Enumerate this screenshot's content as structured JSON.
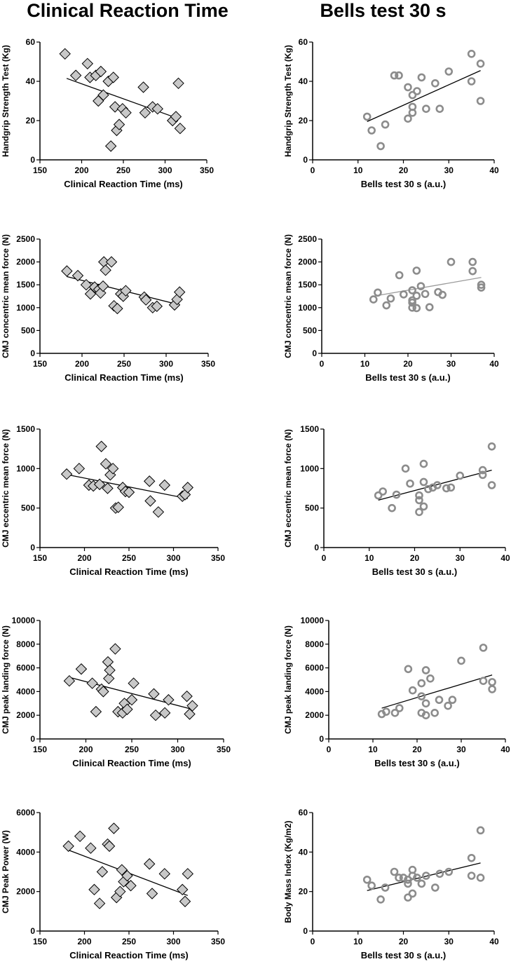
{
  "titles": {
    "left": "Clinical Reaction Time",
    "right": "Bells test 30 s"
  },
  "colors": {
    "diamond_fill": "#c8c8c8",
    "diamond_stroke": "#000000",
    "circle_stroke": "#8c8c8c",
    "line_dark": "#000000",
    "line_light": "#9a9a9a"
  },
  "chart_data": [
    {
      "type": "scatter",
      "marker": "diamond",
      "xlabel": "Clinical Reaction Time (ms)",
      "ylabel": "Handgrip Strength Test (Kg)",
      "xlim": [
        150,
        350
      ],
      "ylim": [
        0,
        60
      ],
      "xticks": [
        150,
        200,
        250,
        300,
        350
      ],
      "yticks": [
        0,
        20,
        40,
        60
      ],
      "x": [
        180,
        193,
        207,
        210,
        217,
        220,
        223,
        226,
        232,
        235,
        238,
        240,
        242,
        245,
        249,
        253,
        274,
        276,
        285,
        291,
        309,
        313,
        316,
        318
      ],
      "y": [
        54,
        43,
        49,
        42,
        43,
        30,
        45,
        33,
        40,
        7,
        42,
        27,
        15,
        18,
        26,
        24,
        37,
        24,
        27,
        26,
        20,
        22,
        39,
        16
      ],
      "fit": {
        "x": [
          182,
          316
        ],
        "y": [
          41.5,
          21
        ]
      }
    },
    {
      "type": "scatter",
      "marker": "circle",
      "xlabel": "Bells test 30 s (a.u.)",
      "ylabel": "Handgrip Strength Test (Kg)",
      "xlim": [
        0,
        40
      ],
      "ylim": [
        0,
        60
      ],
      "xticks": [
        0,
        10,
        20,
        30,
        40
      ],
      "yticks": [
        0,
        20,
        40,
        60
      ],
      "x": [
        12,
        13,
        15,
        16,
        18,
        19,
        21,
        21,
        22,
        22,
        22,
        23,
        24,
        25,
        27,
        28,
        30,
        35,
        35,
        37,
        37
      ],
      "y": [
        22,
        15,
        7,
        18,
        43,
        43,
        37,
        21,
        33,
        24,
        27,
        35,
        42,
        26,
        39,
        26,
        45,
        54,
        40,
        49,
        30
      ],
      "fit": {
        "x": [
          12,
          37
        ],
        "y": [
          19.5,
          45.5
        ]
      }
    },
    {
      "type": "scatter",
      "marker": "diamond",
      "xlabel": "Clinical Reaction Time (ms)",
      "ylabel": "CMJ concentric mean force (N)",
      "xlim": [
        150,
        350
      ],
      "ylim": [
        0,
        2500
      ],
      "xticks": [
        150,
        200,
        250,
        300,
        350
      ],
      "yticks": [
        0,
        500,
        1000,
        1500,
        2000,
        2500
      ],
      "x": [
        182,
        195,
        205,
        210,
        215,
        220,
        222,
        225,
        226,
        228,
        235,
        238,
        242,
        246,
        249,
        252,
        274,
        276,
        284,
        289,
        310,
        313,
        316
      ],
      "y": [
        1800,
        1700,
        1500,
        1300,
        1450,
        1400,
        1320,
        1470,
        2000,
        1820,
        2000,
        1040,
        980,
        1300,
        1250,
        1370,
        1230,
        1170,
        1000,
        1030,
        1060,
        1180,
        1340
      ],
      "fit": {
        "x": [
          182,
          316
        ],
        "y": [
          1680,
          1060
        ]
      }
    },
    {
      "type": "scatter",
      "marker": "circle",
      "xlabel": "Bells test 30 s (a.u.)",
      "ylabel": "CMJ concentric mean force (N)",
      "xlim": [
        0,
        40
      ],
      "ylim": [
        0,
        2500
      ],
      "xticks": [
        0,
        10,
        20,
        30,
        40
      ],
      "yticks": [
        0,
        500,
        1000,
        1500,
        2000,
        2500
      ],
      "x": [
        12,
        13,
        15,
        16,
        18,
        19,
        21,
        21,
        21,
        21,
        22,
        22,
        22,
        23,
        24,
        25,
        27,
        28,
        30,
        35,
        35,
        37,
        37
      ],
      "y": [
        1180,
        1330,
        1050,
        1200,
        1710,
        1290,
        1380,
        1160,
        1000,
        1110,
        1810,
        1260,
        990,
        1470,
        1300,
        1010,
        1340,
        1280,
        2000,
        2000,
        1800,
        1500,
        1440
      ],
      "fit": {
        "x": [
          12,
          37
        ],
        "y": [
          1250,
          1660
        ]
      }
    },
    {
      "type": "scatter",
      "marker": "diamond",
      "xlabel": "Clinical Reaction Time (ms)",
      "ylabel": "CMJ eccentric mean force (N)",
      "xlim": [
        150,
        350
      ],
      "ylim": [
        0,
        1500
      ],
      "xticks": [
        150,
        200,
        250,
        300,
        350
      ],
      "yticks": [
        0,
        500,
        1000,
        1500
      ],
      "x": [
        180,
        194,
        205,
        210,
        217,
        219,
        224,
        226,
        229,
        232,
        235,
        238,
        243,
        246,
        250,
        273,
        274,
        283,
        290,
        310,
        313,
        316
      ],
      "y": [
        930,
        1000,
        790,
        780,
        800,
        1280,
        1060,
        750,
        920,
        1000,
        500,
        510,
        760,
        710,
        700,
        840,
        590,
        450,
        790,
        650,
        670,
        760
      ],
      "fit": {
        "x": [
          182,
          316
        ],
        "y": [
          920,
          620
        ]
      }
    },
    {
      "type": "scatter",
      "marker": "circle",
      "xlabel": "Bells test 30 s (a.u.)",
      "ylabel": "CMJ eccentric mean force (N)",
      "xlim": [
        0,
        40
      ],
      "ylim": [
        0,
        1500
      ],
      "xticks": [
        0,
        10,
        20,
        30,
        40
      ],
      "yticks": [
        0,
        500,
        1000,
        1500
      ],
      "x": [
        12,
        13,
        15,
        16,
        18,
        19,
        21,
        21,
        21,
        22,
        22,
        22,
        23,
        24,
        25,
        27,
        28,
        30,
        35,
        35,
        37,
        37
      ],
      "y": [
        660,
        710,
        500,
        670,
        1000,
        810,
        660,
        600,
        450,
        1060,
        830,
        520,
        740,
        760,
        790,
        750,
        760,
        910,
        980,
        920,
        1280,
        790
      ],
      "fit": {
        "x": [
          12,
          37
        ],
        "y": [
          600,
          980
        ]
      }
    },
    {
      "type": "scatter",
      "marker": "diamond",
      "xlabel": "Clinical Reaction Time (ms)",
      "ylabel": "CMJ peak landing force (N)",
      "xlim": [
        150,
        350
      ],
      "ylim": [
        0,
        10000
      ],
      "xticks": [
        150,
        200,
        250,
        300,
        350
      ],
      "yticks": [
        0,
        2000,
        4000,
        6000,
        8000,
        10000
      ],
      "x": [
        182,
        195,
        207,
        211,
        217,
        219,
        224,
        225,
        226,
        232,
        235,
        240,
        242,
        245,
        250,
        252,
        274,
        276,
        286,
        290,
        310,
        313,
        316
      ],
      "y": [
        4900,
        5900,
        4700,
        2300,
        4200,
        4000,
        6500,
        5100,
        5800,
        7600,
        2300,
        2200,
        3000,
        2500,
        3300,
        4700,
        3800,
        2000,
        2200,
        3300,
        3600,
        2100,
        2800
      ],
      "fit": {
        "x": [
          182,
          316
        ],
        "y": [
          5200,
          2500
        ]
      }
    },
    {
      "type": "scatter",
      "marker": "circle",
      "xlabel": "Bells test 30 s (a.u.)",
      "ylabel": "CMJ peak landing force (N)",
      "xlim": [
        0,
        40
      ],
      "ylim": [
        0,
        10000
      ],
      "xticks": [
        0,
        10,
        20,
        30,
        40
      ],
      "yticks": [
        0,
        2000,
        4000,
        6000,
        8000,
        10000
      ],
      "x": [
        12,
        13,
        15,
        16,
        18,
        19,
        21,
        21,
        21,
        22,
        22,
        22,
        23,
        24,
        25,
        27,
        28,
        30,
        35,
        35,
        37,
        37
      ],
      "y": [
        2100,
        2300,
        2200,
        2600,
        5900,
        4100,
        4700,
        3600,
        2200,
        5800,
        3000,
        2000,
        5100,
        2200,
        3300,
        2800,
        3300,
        6600,
        7700,
        4900,
        4800,
        4200
      ],
      "fit": {
        "x": [
          12,
          37
        ],
        "y": [
          2600,
          5400
        ]
      }
    },
    {
      "type": "scatter",
      "marker": "diamond",
      "xlabel": "Clinical Reaction Time (ms)",
      "ylabel": "CMJ Peak Power (W)",
      "xlim": [
        150,
        350
      ],
      "ylim": [
        0,
        6000
      ],
      "xticks": [
        150,
        200,
        250,
        300,
        350
      ],
      "yticks": [
        0,
        2000,
        4000,
        6000
      ],
      "x": [
        182,
        195,
        207,
        211,
        217,
        220,
        226,
        228,
        233,
        236,
        240,
        242,
        244,
        248,
        252,
        273,
        276,
        290,
        310,
        313,
        316
      ],
      "y": [
        4300,
        4800,
        4200,
        2100,
        1400,
        3000,
        4400,
        4300,
        5200,
        1700,
        2000,
        3100,
        2500,
        2800,
        2300,
        3400,
        1900,
        2900,
        2100,
        1500,
        2900
      ],
      "fit": {
        "x": [
          182,
          316
        ],
        "y": [
          4100,
          1800
        ]
      }
    },
    {
      "type": "scatter",
      "marker": "circle",
      "xlabel": "Bells test 30 s (a.u.)",
      "ylabel": "Body Mass Index (Kg/m2)",
      "xlim": [
        0,
        40
      ],
      "ylim": [
        0,
        60
      ],
      "xticks": [
        0,
        10,
        20,
        30,
        40
      ],
      "yticks": [
        0,
        20,
        40,
        60
      ],
      "x": [
        12,
        13,
        15,
        16,
        18,
        19,
        20,
        21,
        21,
        21,
        22,
        22,
        22,
        23,
        24,
        25,
        27,
        28,
        30,
        35,
        35,
        37,
        37
      ],
      "y": [
        26,
        23,
        16,
        22,
        30,
        27,
        27,
        26,
        24,
        17,
        31,
        28,
        19,
        27,
        24,
        28,
        22,
        29,
        30,
        37,
        28,
        51,
        27
      ],
      "fit": {
        "x": [
          12,
          37
        ],
        "y": [
          20.5,
          34.5
        ]
      }
    }
  ]
}
